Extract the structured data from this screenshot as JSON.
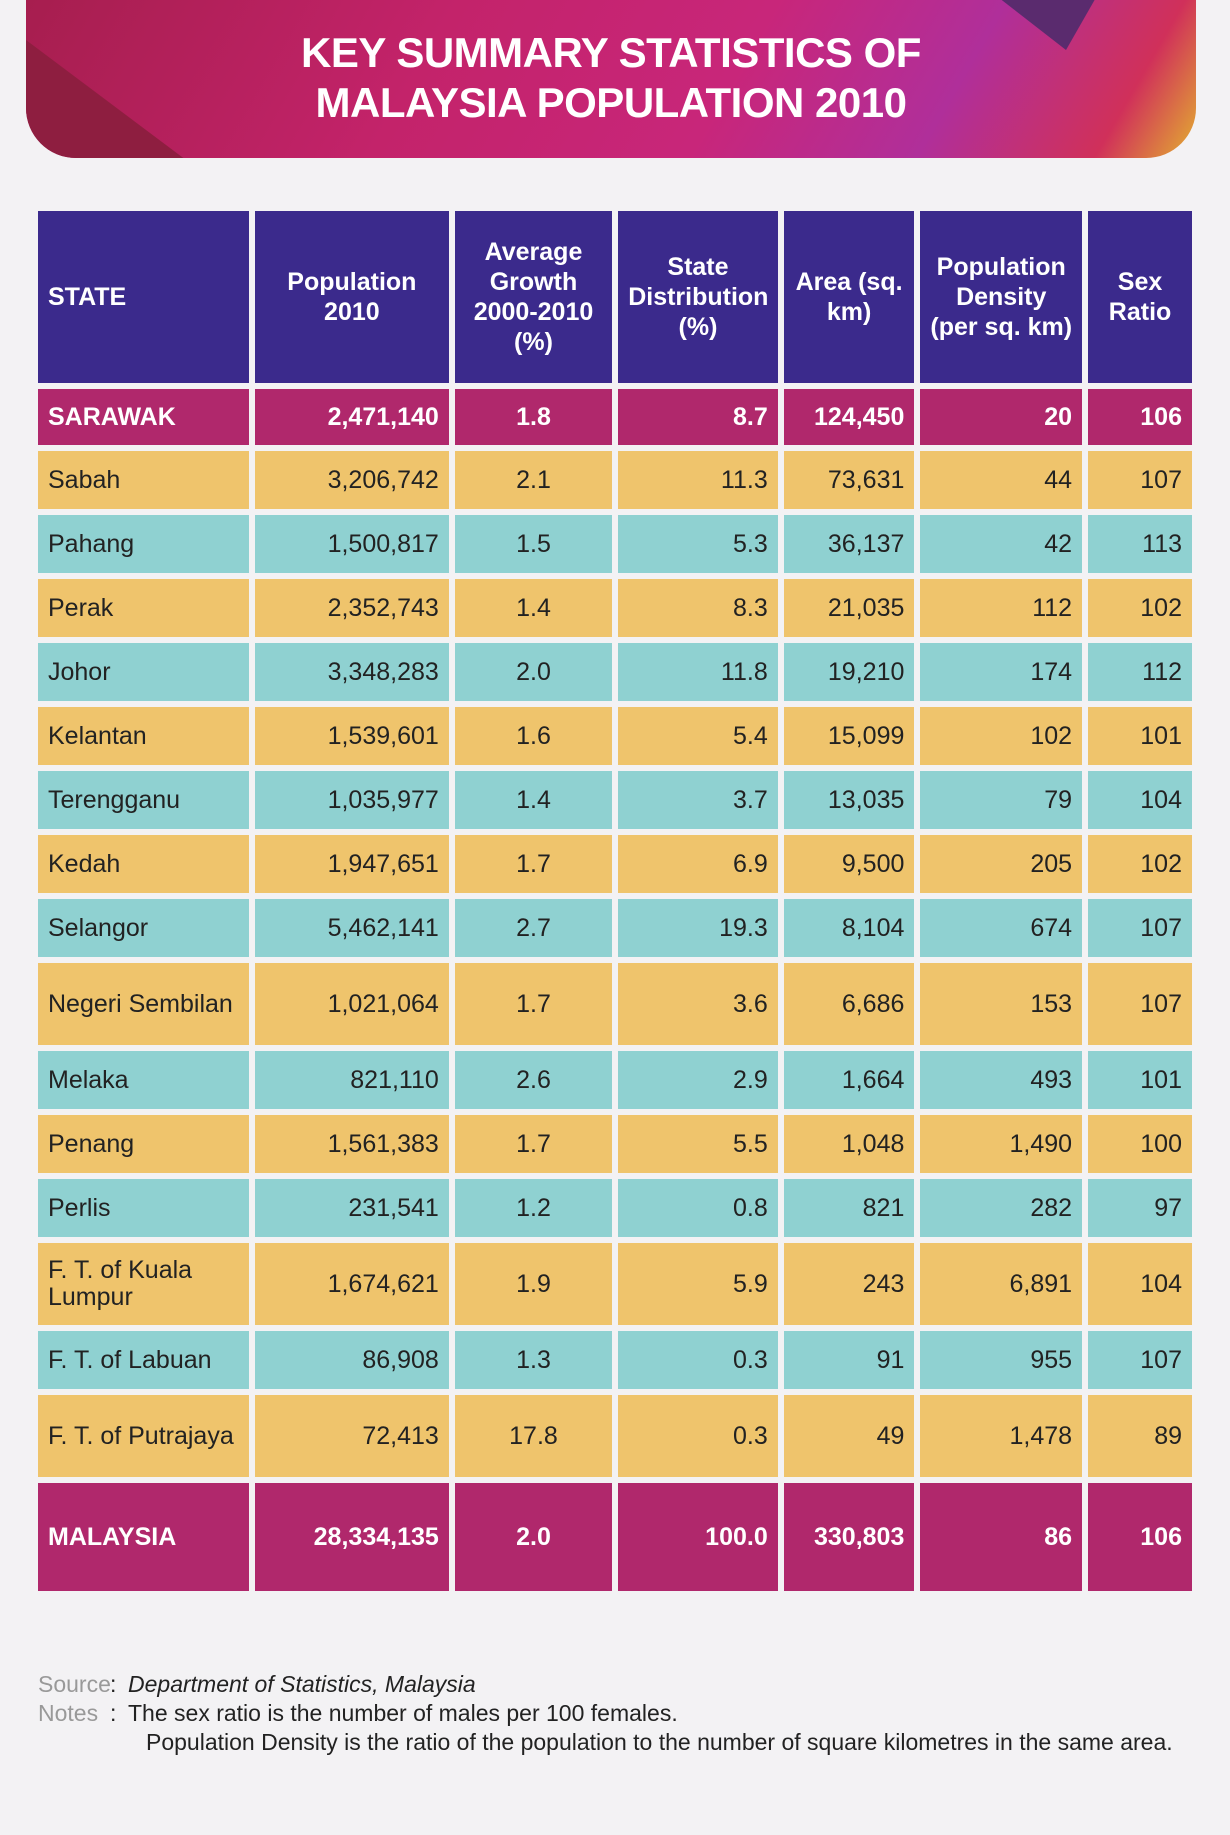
{
  "title": {
    "line1": "KEY SUMMARY STATISTICS OF",
    "line2": "MALAYSIA POPULATION 2010"
  },
  "columns": [
    "STATE",
    "Population 2010",
    "Average Growth 2000-2010 (%)",
    "State Distribution (%)",
    "Area (sq. km)",
    "Population Density (per sq. km)",
    "Sex Ratio"
  ],
  "rows": [
    {
      "state": "SARAWAK",
      "population": "2,471,140",
      "growth": "1.8",
      "distribution": "8.7",
      "area": "124,450",
      "density": "20",
      "sex_ratio": "106"
    },
    {
      "state": "Sabah",
      "population": "3,206,742",
      "growth": "2.1",
      "distribution": "11.3",
      "area": "73,631",
      "density": "44",
      "sex_ratio": "107"
    },
    {
      "state": "Pahang",
      "population": "1,500,817",
      "growth": "1.5",
      "distribution": "5.3",
      "area": "36,137",
      "density": "42",
      "sex_ratio": "113"
    },
    {
      "state": "Perak",
      "population": "2,352,743",
      "growth": "1.4",
      "distribution": "8.3",
      "area": "21,035",
      "density": "112",
      "sex_ratio": "102"
    },
    {
      "state": "Johor",
      "population": "3,348,283",
      "growth": "2.0",
      "distribution": "11.8",
      "area": "19,210",
      "density": "174",
      "sex_ratio": "112"
    },
    {
      "state": "Kelantan",
      "population": "1,539,601",
      "growth": "1.6",
      "distribution": "5.4",
      "area": "15,099",
      "density": "102",
      "sex_ratio": "101"
    },
    {
      "state": "Terengganu",
      "population": "1,035,977",
      "growth": "1.4",
      "distribution": "3.7",
      "area": "13,035",
      "density": "79",
      "sex_ratio": "104"
    },
    {
      "state": "Kedah",
      "population": "1,947,651",
      "growth": "1.7",
      "distribution": "6.9",
      "area": "9,500",
      "density": "205",
      "sex_ratio": "102"
    },
    {
      "state": "Selangor",
      "population": "5,462,141",
      "growth": "2.7",
      "distribution": "19.3",
      "area": "8,104",
      "density": "674",
      "sex_ratio": "107"
    },
    {
      "state": "Negeri Sembilan",
      "population": "1,021,064",
      "growth": "1.7",
      "distribution": "3.6",
      "area": "6,686",
      "density": "153",
      "sex_ratio": "107"
    },
    {
      "state": "Melaka",
      "population": "821,110",
      "growth": "2.6",
      "distribution": "2.9",
      "area": "1,664",
      "density": "493",
      "sex_ratio": "101"
    },
    {
      "state": "Penang",
      "population": "1,561,383",
      "growth": "1.7",
      "distribution": "5.5",
      "area": "1,048",
      "density": "1,490",
      "sex_ratio": "100"
    },
    {
      "state": "Perlis",
      "population": "231,541",
      "growth": "1.2",
      "distribution": "0.8",
      "area": "821",
      "density": "282",
      "sex_ratio": "97"
    },
    {
      "state": "F. T. of Kuala Lumpur",
      "population": "1,674,621",
      "growth": "1.9",
      "distribution": "5.9",
      "area": "243",
      "density": "6,891",
      "sex_ratio": "104"
    },
    {
      "state": "F. T. of Labuan",
      "population": "86,908",
      "growth": "1.3",
      "distribution": "0.3",
      "area": "91",
      "density": "955",
      "sex_ratio": "107"
    },
    {
      "state": "F. T. of Putrajaya",
      "population": "72,413",
      "growth": "17.8",
      "distribution": "0.3",
      "area": "49",
      "density": "1,478",
      "sex_ratio": "89"
    }
  ],
  "total": {
    "state": "MALAYSIA",
    "population": "28,334,135",
    "growth": "2.0",
    "distribution": "100.0",
    "area": "330,803",
    "density": "86",
    "sex_ratio": "106"
  },
  "footer": {
    "source_label": "Source",
    "source": "Department of Statistics, Malaysia",
    "notes_label": "Notes",
    "note1": "The sex ratio is the number of males per 100 females.",
    "note2": "Population Density is the ratio of the population to the number of square kilometres in the same area."
  },
  "colors": {
    "header": "#3b2a8c",
    "highlight": "#b0286c",
    "yellow": "#efc46c",
    "teal": "#8fd1d1"
  }
}
